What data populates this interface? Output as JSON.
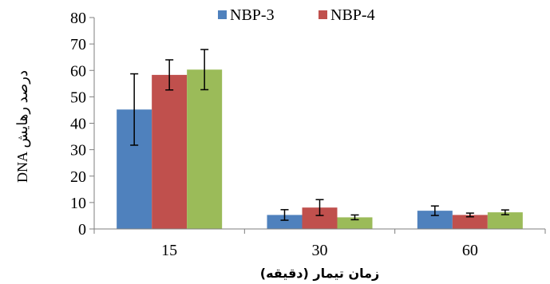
{
  "chart_data": {
    "type": "bar",
    "categories": [
      "15",
      "30",
      "60"
    ],
    "series": [
      {
        "name": "NBP-3",
        "color": "#4f81bd",
        "values": [
          45.2,
          5.3,
          6.9
        ],
        "errors": [
          13.5,
          2.0,
          1.8
        ]
      },
      {
        "name": "NBP-4",
        "color": "#c0504d",
        "values": [
          58.3,
          8.1,
          5.3
        ],
        "errors": [
          5.7,
          3.0,
          0.7
        ]
      },
      {
        "name": "",
        "color": "#9bbb59",
        "values": [
          60.3,
          4.4,
          6.3
        ],
        "errors": [
          7.6,
          0.9,
          0.9
        ]
      }
    ],
    "xlabel": "زمان تیمار (دقیقه)",
    "ylabel": "درصد رهایش DNA",
    "ylim": [
      0,
      80
    ],
    "yticks": [
      "0",
      "10",
      "20",
      "30",
      "40",
      "50",
      "60",
      "70",
      "80"
    ],
    "legend_position": "top",
    "grid": false
  }
}
